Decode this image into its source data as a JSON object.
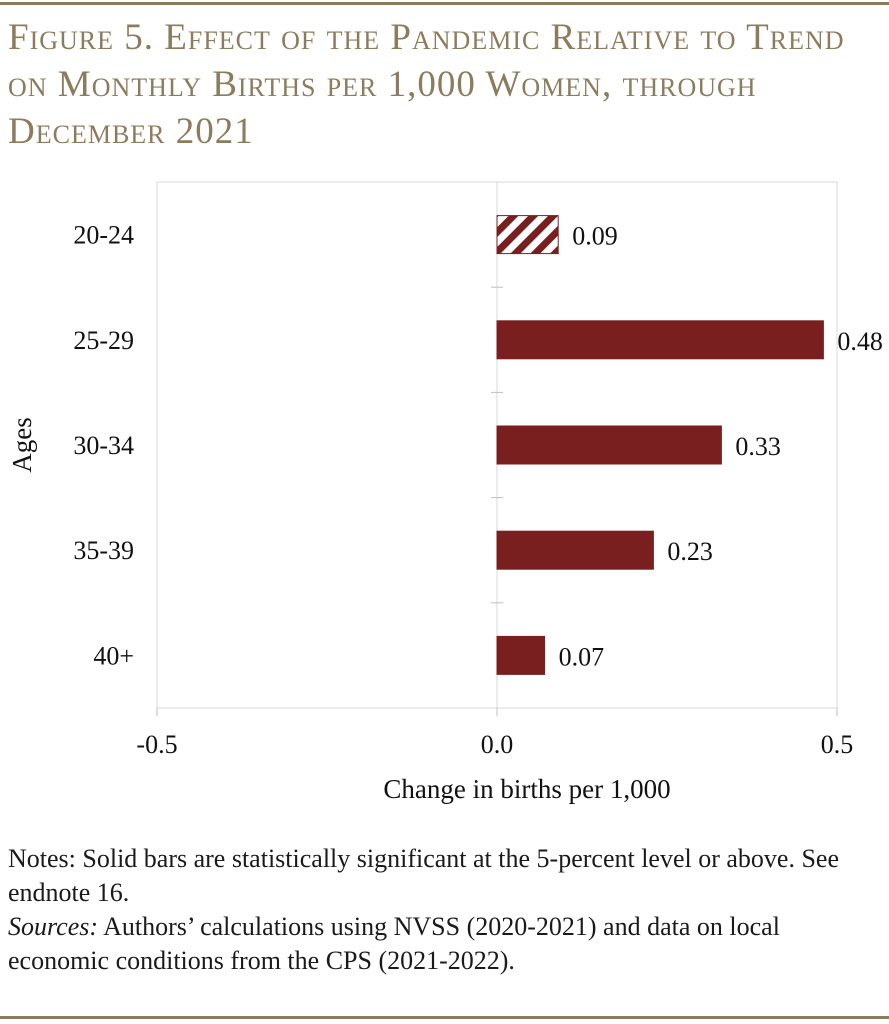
{
  "title": "Figure 5. Effect of the Pandemic Relative to Trend on Monthly Births per 1,000 Women, through December 2021",
  "colors": {
    "accent": "#8c7b5c",
    "bar": "#7a1f1f"
  },
  "chart_data": {
    "type": "bar",
    "orientation": "horizontal",
    "categories": [
      "20-24",
      "25-29",
      "30-34",
      "35-39",
      "40+"
    ],
    "values": [
      0.09,
      0.48,
      0.33,
      0.23,
      0.07
    ],
    "value_labels": [
      "0.09",
      "0.48",
      "0.33",
      "0.23",
      "0.07"
    ],
    "significant": [
      false,
      true,
      true,
      true,
      true
    ],
    "xlabel": "Change in births per 1,000",
    "ylabel": "Ages",
    "xlim": [
      -0.5,
      0.5
    ],
    "xticks": [
      -0.5,
      0.0,
      0.5
    ],
    "xtick_labels": [
      "-0.5",
      "0.0",
      "0.5"
    ],
    "grid": false,
    "legend": "none"
  },
  "notes": {
    "line1": "Notes: Solid bars are statistically significant at the 5-percent level or above.  See endnote 16.",
    "sources_label": "Sources:",
    "sources_text": " Authors’ calculations using NVSS (2020-2021) and data on local economic conditions from the CPS (2021-2022)."
  }
}
